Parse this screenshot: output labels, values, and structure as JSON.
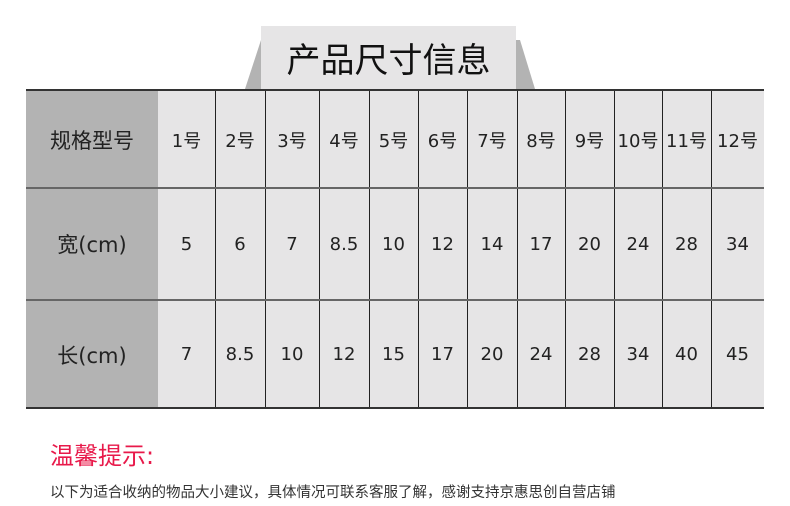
{
  "title": "产品尺寸信息",
  "table": {
    "rows": [
      {
        "label": "规格型号",
        "cells": [
          "1号",
          "2号",
          "3号",
          "4号",
          "5号",
          "6号",
          "7号",
          "8号",
          "9号",
          "10号",
          "11号",
          "12号"
        ]
      },
      {
        "label": "宽(cm)",
        "cells": [
          "5",
          "6",
          "7",
          "8.5",
          "10",
          "12",
          "14",
          "17",
          "20",
          "24",
          "28",
          "34"
        ]
      },
      {
        "label": "长(cm)",
        "cells": [
          "7",
          "8.5",
          "10",
          "12",
          "15",
          "17",
          "20",
          "24",
          "28",
          "34",
          "40",
          "45"
        ]
      }
    ]
  },
  "tip": {
    "title": "温馨提示:",
    "text": "以下为适合收纳的物品大小建议，具体情况可联系客服了解，感谢支持京惠思创自营店铺"
  },
  "colors": {
    "accent": "#e8194a",
    "label_bg": "#b3b3b3",
    "cell_bg": "#e6e5e6"
  }
}
